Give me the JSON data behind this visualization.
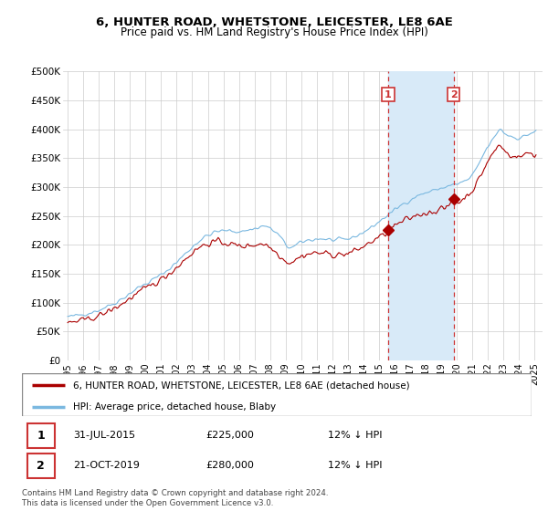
{
  "title": "6, HUNTER ROAD, WHETSTONE, LEICESTER, LE8 6AE",
  "subtitle": "Price paid vs. HM Land Registry's House Price Index (HPI)",
  "legend_line1": "6, HUNTER ROAD, WHETSTONE, LEICESTER, LE8 6AE (detached house)",
  "legend_line2": "HPI: Average price, detached house, Blaby",
  "footer": "Contains HM Land Registry data © Crown copyright and database right 2024.\nThis data is licensed under the Open Government Licence v3.0.",
  "transaction1_date": "31-JUL-2015",
  "transaction1_price": "£225,000",
  "transaction1_hpi": "12% ↓ HPI",
  "transaction2_date": "21-OCT-2019",
  "transaction2_price": "£280,000",
  "transaction2_hpi": "12% ↓ HPI",
  "hpi_color": "#7ab8e0",
  "price_paid_color": "#aa0000",
  "highlight_color": "#d8eaf8",
  "marker1_x": 2015.58,
  "marker1_y": 225000,
  "marker2_x": 2019.8,
  "marker2_y": 280000,
  "ylim_min": 0,
  "ylim_max": 500000,
  "xlim_min": 1994.7,
  "xlim_max": 2025.5,
  "yticks": [
    0,
    50000,
    100000,
    150000,
    200000,
    250000,
    300000,
    350000,
    400000,
    450000,
    500000
  ],
  "ytick_labels": [
    "£0",
    "£50K",
    "£100K",
    "£150K",
    "£200K",
    "£250K",
    "£300K",
    "£350K",
    "£400K",
    "£450K",
    "£500K"
  ],
  "xtick_years": [
    1995,
    1996,
    1997,
    1998,
    1999,
    2000,
    2001,
    2002,
    2003,
    2004,
    2005,
    2006,
    2007,
    2008,
    2009,
    2010,
    2011,
    2012,
    2013,
    2014,
    2015,
    2016,
    2017,
    2018,
    2019,
    2020,
    2021,
    2022,
    2023,
    2024,
    2025
  ]
}
